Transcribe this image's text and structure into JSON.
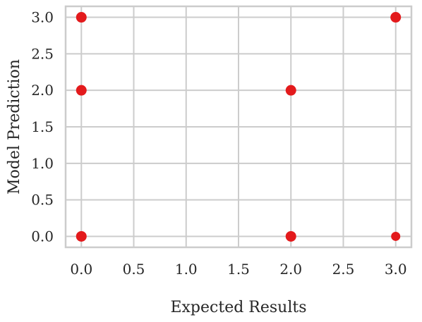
{
  "chart_data": {
    "type": "scatter",
    "xlabel": "Expected Results",
    "ylabel": "Model Prediction",
    "xlim": [
      -0.15,
      3.15
    ],
    "ylim": [
      -0.15,
      3.15
    ],
    "xticks": [
      "0.0",
      "0.5",
      "1.0",
      "1.5",
      "2.0",
      "2.5",
      "3.0"
    ],
    "yticks": [
      "0.0",
      "0.5",
      "1.0",
      "1.5",
      "2.0",
      "2.5",
      "3.0"
    ],
    "grid": true,
    "marker_color": "#e31a1c",
    "points": [
      {
        "x": 0,
        "y": 3
      },
      {
        "x": 0,
        "y": 2
      },
      {
        "x": 0,
        "y": 0
      },
      {
        "x": 2,
        "y": 2
      },
      {
        "x": 2,
        "y": 0
      },
      {
        "x": 3,
        "y": 3
      },
      {
        "x": 3,
        "y": 0
      }
    ]
  }
}
